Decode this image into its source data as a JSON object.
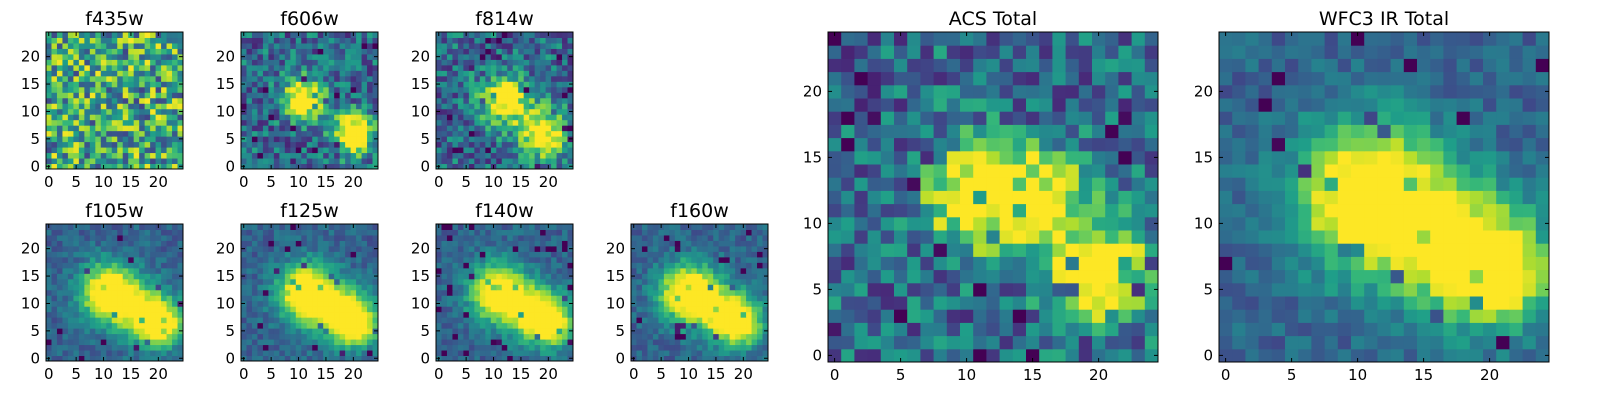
{
  "chart_data": [
    {
      "type": "heatmap",
      "title": "f435w",
      "xlim": [
        0,
        24
      ],
      "ylim": [
        0,
        24
      ],
      "xticks": [
        "0",
        "5",
        "10",
        "15",
        "20"
      ],
      "yticks": [
        "0",
        "5",
        "10",
        "15",
        "20"
      ],
      "colormap": "viridis",
      "grid": false,
      "pattern": {
        "kind": "noise",
        "blobs": []
      }
    },
    {
      "type": "heatmap",
      "title": "f606w",
      "xlim": [
        0,
        24
      ],
      "ylim": [
        0,
        24
      ],
      "xticks": [
        "0",
        "5",
        "10",
        "15",
        "20"
      ],
      "yticks": [
        "0",
        "5",
        "10",
        "15",
        "20"
      ],
      "colormap": "viridis",
      "grid": false,
      "pattern": {
        "kind": "blob",
        "blobs": [
          {
            "x": 11,
            "y": 12.5,
            "peak": 0.85,
            "sigma": 2.5
          },
          {
            "x": 20,
            "y": 6,
            "peak": 1.0,
            "sigma": 2.5
          }
        ]
      }
    },
    {
      "type": "heatmap",
      "title": "f814w",
      "xlim": [
        0,
        24
      ],
      "ylim": [
        0,
        24
      ],
      "xticks": [
        "0",
        "5",
        "10",
        "15",
        "20"
      ],
      "yticks": [
        "0",
        "5",
        "10",
        "15",
        "20"
      ],
      "colormap": "viridis",
      "grid": false,
      "pattern": {
        "kind": "blob",
        "blobs": [
          {
            "x": 12,
            "y": 12,
            "peak": 0.8,
            "sigma": 3
          },
          {
            "x": 19,
            "y": 6,
            "peak": 0.85,
            "sigma": 3
          }
        ]
      }
    },
    {
      "type": "heatmap",
      "title": "f105w",
      "xlim": [
        0,
        24
      ],
      "ylim": [
        0,
        24
      ],
      "xticks": [
        "0",
        "5",
        "10",
        "15",
        "20"
      ],
      "yticks": [
        "0",
        "5",
        "10",
        "15",
        "20"
      ],
      "colormap": "viridis",
      "grid": false,
      "pattern": {
        "kind": "smooth",
        "blobs": [
          {
            "x": 11,
            "y": 12,
            "peak": 1.0,
            "sigma": 3.5
          },
          {
            "x": 18,
            "y": 8,
            "peak": 0.7,
            "sigma": 3.5
          },
          {
            "x": 21,
            "y": 6,
            "peak": 0.6,
            "sigma": 2.5
          }
        ]
      }
    },
    {
      "type": "heatmap",
      "title": "f125w",
      "xlim": [
        0,
        24
      ],
      "ylim": [
        0,
        24
      ],
      "xticks": [
        "0",
        "5",
        "10",
        "15",
        "20"
      ],
      "yticks": [
        "0",
        "5",
        "10",
        "15",
        "20"
      ],
      "colormap": "viridis",
      "grid": false,
      "pattern": {
        "kind": "smooth",
        "blobs": [
          {
            "x": 11.5,
            "y": 12,
            "peak": 1.0,
            "sigma": 3.5
          },
          {
            "x": 18,
            "y": 8,
            "peak": 0.75,
            "sigma": 3.5
          },
          {
            "x": 21,
            "y": 6,
            "peak": 0.6,
            "sigma": 2.5
          }
        ]
      }
    },
    {
      "type": "heatmap",
      "title": "f140w",
      "xlim": [
        0,
        24
      ],
      "ylim": [
        0,
        24
      ],
      "xticks": [
        "0",
        "5",
        "10",
        "15",
        "20"
      ],
      "yticks": [
        "0",
        "5",
        "10",
        "15",
        "20"
      ],
      "colormap": "viridis",
      "grid": false,
      "pattern": {
        "kind": "smooth",
        "blobs": [
          {
            "x": 11,
            "y": 12,
            "peak": 1.0,
            "sigma": 3.5
          },
          {
            "x": 18,
            "y": 8,
            "peak": 0.7,
            "sigma": 3.5
          },
          {
            "x": 21,
            "y": 6,
            "peak": 0.6,
            "sigma": 2.5
          }
        ]
      }
    },
    {
      "type": "heatmap",
      "title": "f160w",
      "xlim": [
        0,
        24
      ],
      "ylim": [
        0,
        24
      ],
      "xticks": [
        "0",
        "5",
        "10",
        "15",
        "20"
      ],
      "yticks": [
        "0",
        "5",
        "10",
        "15",
        "20"
      ],
      "colormap": "viridis",
      "grid": false,
      "pattern": {
        "kind": "smooth",
        "blobs": [
          {
            "x": 10,
            "y": 12,
            "peak": 1.0,
            "sigma": 3.5
          },
          {
            "x": 17,
            "y": 8,
            "peak": 0.7,
            "sigma": 3.5
          },
          {
            "x": 20,
            "y": 6,
            "peak": 0.55,
            "sigma": 2.5
          }
        ]
      }
    },
    {
      "type": "heatmap",
      "title": "ACS Total",
      "xlim": [
        0,
        24
      ],
      "ylim": [
        0,
        24
      ],
      "xticks": [
        "0",
        "5",
        "10",
        "15",
        "20"
      ],
      "yticks": [
        "0",
        "5",
        "10",
        "15",
        "20"
      ],
      "colormap": "viridis",
      "grid": false,
      "pattern": {
        "kind": "blob",
        "blobs": [
          {
            "x": 11,
            "y": 12,
            "peak": 0.85,
            "sigma": 2.8
          },
          {
            "x": 16,
            "y": 12.5,
            "peak": 0.8,
            "sigma": 2
          },
          {
            "x": 20,
            "y": 6.5,
            "peak": 1.0,
            "sigma": 2.5
          }
        ]
      }
    },
    {
      "type": "heatmap",
      "title": "WFC3 IR Total",
      "xlim": [
        0,
        24
      ],
      "ylim": [
        0,
        24
      ],
      "xticks": [
        "0",
        "5",
        "10",
        "15",
        "20"
      ],
      "yticks": [
        "0",
        "5",
        "10",
        "15",
        "20"
      ],
      "colormap": "viridis",
      "grid": false,
      "pattern": {
        "kind": "smooth",
        "blobs": [
          {
            "x": 11,
            "y": 12,
            "peak": 1.0,
            "sigma": 3.8
          },
          {
            "x": 18,
            "y": 8,
            "peak": 0.7,
            "sigma": 3.5
          },
          {
            "x": 21,
            "y": 6,
            "peak": 0.6,
            "sigma": 2.5
          }
        ]
      }
    }
  ]
}
